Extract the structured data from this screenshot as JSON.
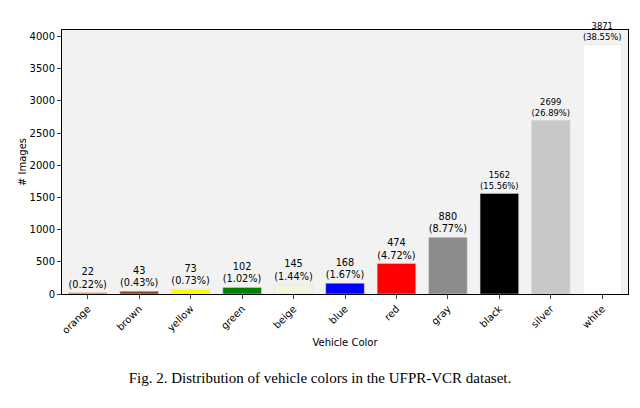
{
  "chart_data": {
    "type": "bar",
    "caption": "Fig. 2.  Distribution of vehicle colors in the UFPR-VCR dataset.",
    "x_label": "Vehicle Color",
    "y_label": "# Images",
    "categories": [
      "orange",
      "brown",
      "yellow",
      "green",
      "beige",
      "blue",
      "red",
      "gray",
      "black",
      "silver",
      "white"
    ],
    "values": [
      22,
      43,
      73,
      102,
      145,
      168,
      474,
      880,
      1562,
      2699,
      3871
    ],
    "value_labels": [
      "22\n(0.22%)",
      "43\n(0.43%)",
      "73\n(0.73%)",
      "102\n(1.02%)",
      "145\n(1.44%)",
      "168\n(1.67%)",
      "474\n(4.72%)",
      "880\n(8.77%)",
      "1562\n(15.56%)",
      "2699\n(26.89%)",
      "3871\n(38.55%)"
    ],
    "colors": [
      "#ff8c00",
      "#8b4513",
      "#ffff00",
      "#008000",
      "#f5f5dc",
      "#0000ff",
      "#ff0000",
      "#8c8c8c",
      "#000000",
      "#c8c8c8",
      "#ffffff"
    ],
    "data_labels": true,
    "grid": false,
    "ylim": [
      0,
      4100
    ],
    "yticks": [
      0,
      500,
      1000,
      1500,
      2000,
      2500,
      3000,
      3500,
      4000
    ]
  }
}
